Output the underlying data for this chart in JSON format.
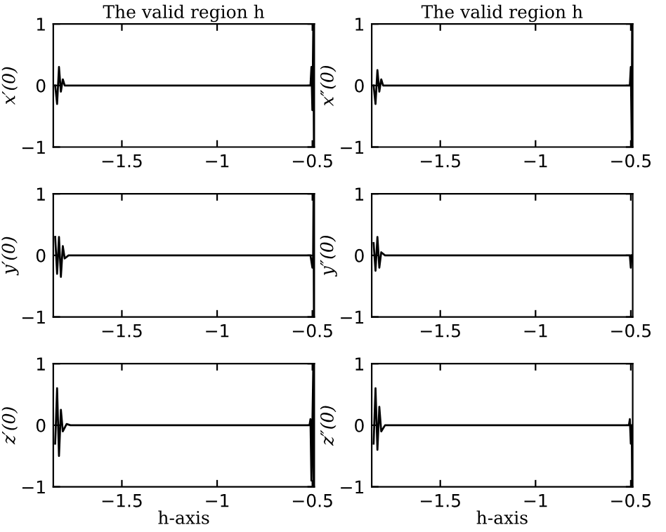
{
  "chart_data": [
    {
      "type": "line",
      "title": "The valid region h",
      "ylabel": "x′(0)",
      "xlim": [
        -1.86,
        -0.49
      ],
      "xticks": [
        -1.5,
        -1,
        -0.5
      ],
      "ylim": [
        -1,
        1
      ],
      "yticks": [
        -1,
        0,
        1
      ],
      "grid": false,
      "series": [
        {
          "color": "#000000",
          "x": [
            -1.85,
            -1.84,
            -1.83,
            -1.82,
            -1.81,
            -1.8,
            -0.51,
            -0.505,
            -0.5,
            -0.495,
            -0.492
          ],
          "values": [
            0,
            -0.3,
            0.3,
            -0.1,
            0.1,
            0,
            0,
            0.3,
            -0.4,
            1,
            -1
          ]
        }
      ]
    },
    {
      "type": "line",
      "title": "The valid region h",
      "ylabel": "x″(0)",
      "xlim": [
        -1.86,
        -0.49
      ],
      "xticks": [
        -1.5,
        -1,
        -0.5
      ],
      "ylim": [
        -1,
        1
      ],
      "yticks": [
        -1,
        0,
        1
      ],
      "grid": false,
      "series": [
        {
          "color": "#000000",
          "x": [
            -1.85,
            -1.84,
            -1.83,
            -1.82,
            -1.81,
            -1.8,
            -0.505,
            -0.5,
            -0.495,
            -0.493,
            -0.491
          ],
          "values": [
            0,
            -0.3,
            0.25,
            -0.1,
            0.1,
            0,
            0,
            0.3,
            -0.9,
            1,
            -1
          ]
        }
      ]
    },
    {
      "type": "line",
      "ylabel": "y′(0)",
      "xlim": [
        -1.86,
        -0.49
      ],
      "xticks": [
        -1.5,
        -1,
        -0.5
      ],
      "ylim": [
        -1,
        1
      ],
      "yticks": [
        -1,
        0,
        1
      ],
      "grid": false,
      "series": [
        {
          "color": "#000000",
          "x": [
            -1.85,
            -1.84,
            -1.83,
            -1.82,
            -1.81,
            -1.8,
            -1.78,
            -0.51,
            -0.5,
            -0.496,
            -0.494,
            -0.492
          ],
          "values": [
            0.3,
            -0.3,
            0.3,
            -0.35,
            0.15,
            -0.05,
            0,
            0,
            -0.2,
            0,
            1,
            -1
          ]
        }
      ]
    },
    {
      "type": "line",
      "ylabel": "y″(0)",
      "xlim": [
        -1.86,
        -0.49
      ],
      "xticks": [
        -1.5,
        -1,
        -0.5
      ],
      "ylim": [
        -1,
        1
      ],
      "yticks": [
        -1,
        0,
        1
      ],
      "grid": false,
      "series": [
        {
          "color": "#000000",
          "x": [
            -1.85,
            -1.84,
            -1.83,
            -1.82,
            -1.81,
            -1.79,
            -0.505,
            -0.5,
            -0.495
          ],
          "values": [
            0.2,
            -0.25,
            0.3,
            -0.2,
            0.05,
            0,
            0,
            -0.2,
            0
          ]
        }
      ]
    },
    {
      "type": "line",
      "ylabel": "z′(0)",
      "xlabel": "h-axis",
      "xlim": [
        -1.86,
        -0.49
      ],
      "xticks": [
        -1.5,
        -1,
        -0.5
      ],
      "ylim": [
        -1,
        1
      ],
      "yticks": [
        -1,
        0,
        1
      ],
      "grid": false,
      "series": [
        {
          "color": "#000000",
          "x": [
            -1.85,
            -1.84,
            -1.83,
            -1.82,
            -1.81,
            -1.79,
            -1.77,
            -0.515,
            -0.51,
            -0.505,
            -0.5,
            -0.495,
            -0.493
          ],
          "values": [
            -0.3,
            0.6,
            -0.5,
            0.25,
            -0.1,
            0.02,
            0,
            0,
            0.1,
            -0.9,
            0,
            1,
            -1
          ]
        }
      ]
    },
    {
      "type": "line",
      "ylabel": "z″(0)",
      "xlabel": "h-axis",
      "xlim": [
        -1.86,
        -0.49
      ],
      "xticks": [
        -1.5,
        -1,
        -0.5
      ],
      "ylim": [
        -1,
        1
      ],
      "yticks": [
        -1,
        0,
        1
      ],
      "grid": false,
      "series": [
        {
          "color": "#000000",
          "x": [
            -1.85,
            -1.84,
            -1.83,
            -1.82,
            -1.81,
            -1.79,
            -0.51,
            -0.505,
            -0.5,
            -0.495,
            -0.493
          ],
          "values": [
            -0.3,
            0.6,
            -0.4,
            0.3,
            -0.1,
            0,
            0,
            0.1,
            -0.3,
            0,
            -1
          ]
        }
      ]
    }
  ]
}
